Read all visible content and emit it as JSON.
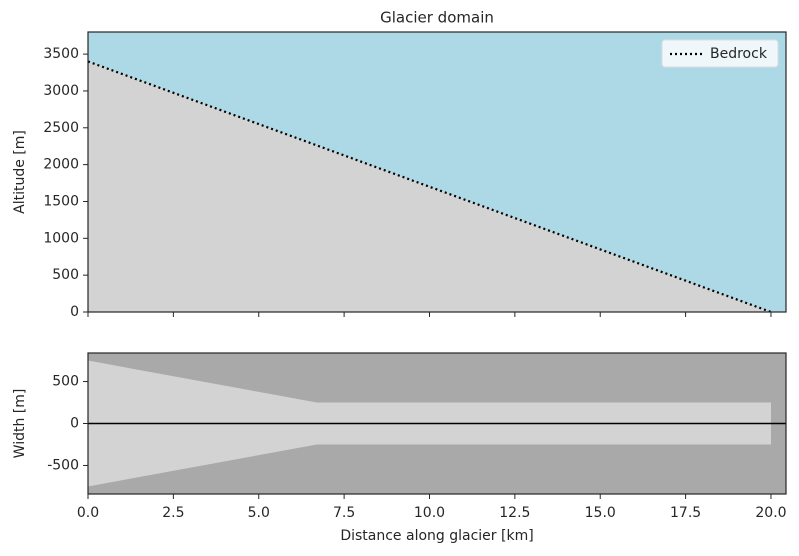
{
  "chart_data": [
    {
      "type": "line",
      "title": "Glacier domain",
      "ylabel": "Altitude [m]",
      "background": "#add8e6",
      "fill_below": "#d3d3d3",
      "xlim": [
        0,
        20.44
      ],
      "ylim": [
        0,
        3800
      ],
      "yticks": [
        0,
        500,
        1000,
        1500,
        2000,
        2500,
        3000,
        3500
      ],
      "series": [
        {
          "name": "Bedrock",
          "color": "#000000",
          "x": [
            0,
            20
          ],
          "values": [
            3400,
            0
          ]
        }
      ],
      "legend": "upper right"
    },
    {
      "type": "area",
      "ylabel": "Width [m]",
      "xlabel": "Distance along glacier [km]",
      "background": "#a9a9a9",
      "fill": "#d3d3d3",
      "zero_line": true,
      "xlim": [
        0,
        20.44
      ],
      "ylim": [
        -840,
        840
      ],
      "xticks": [
        {
          "value": 0,
          "label": "0.0"
        },
        2.5,
        {
          "value": 5,
          "label": "5.0"
        },
        7.5,
        {
          "value": 10,
          "label": "10.0"
        },
        12.5,
        {
          "value": 15,
          "label": "15.0"
        },
        17.5,
        {
          "value": 20,
          "label": "20.0"
        }
      ],
      "yticks": [
        -500,
        0,
        500
      ],
      "x": [
        0,
        6.7,
        20
      ],
      "upper": [
        750,
        250,
        250
      ],
      "lower": [
        -750,
        -250,
        -250
      ]
    }
  ]
}
